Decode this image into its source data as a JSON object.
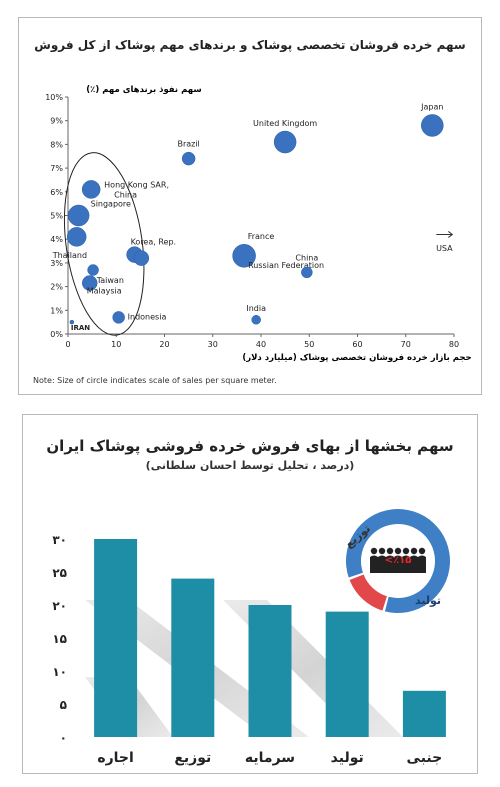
{
  "chart_data": [
    {
      "type": "scatter",
      "title": "سهم خرده فروشان تخصصی پوشاک و برندهای مهم پوشاک از کل فروش",
      "ylabel": "سهم نفوذ برندهای مهم (٪)",
      "xlabel": "حجم بازار خرده فروشان تخصصی پوشاک (میلیارد دلار)",
      "note": "Note: Size of circle indicates scale of sales per square meter.",
      "xlim": [
        0,
        80
      ],
      "ylim": [
        0,
        10
      ],
      "x_ticks": [
        "0",
        "10",
        "20",
        "30",
        "40",
        "50",
        "60",
        "70",
        "80"
      ],
      "y_ticks": [
        "0%",
        "1%",
        "2%",
        "3%",
        "4%",
        "5%",
        "6%",
        "7%",
        "8%",
        "9%",
        "10%"
      ],
      "grid": false,
      "points": [
        {
          "label": "Japan",
          "x": 75.5,
          "y": 8.8,
          "size": 11
        },
        {
          "label": "United Kingdom",
          "x": 45,
          "y": 8.1,
          "size": 11
        },
        {
          "label": "Brazil",
          "x": 25,
          "y": 7.4,
          "size": 6.5
        },
        {
          "label": "Hong Kong SAR, China",
          "x": 4.8,
          "y": 6.1,
          "size": 9
        },
        {
          "label": "Singapore",
          "x": 2.2,
          "y": 5.0,
          "size": 10.5
        },
        {
          "label": "",
          "x": 1.8,
          "y": 4.1,
          "size": 9.5
        },
        {
          "label": "Korea, Rep.",
          "x": 13.8,
          "y": 3.35,
          "size": 8
        },
        {
          "label": "",
          "x": 15.2,
          "y": 3.2,
          "size": 7.5
        },
        {
          "label": "Russian Federation",
          "x": 36.5,
          "y": 3.3,
          "size": 11.5
        },
        {
          "label": "China",
          "x": 49.5,
          "y": 2.6,
          "size": 5.5
        },
        {
          "label": "Thailand",
          "x": 5.2,
          "y": 2.7,
          "size": 5.5
        },
        {
          "label": "Taiwan",
          "x": 4.5,
          "y": 2.15,
          "size": 7.5
        },
        {
          "label": "Indonesia",
          "x": 10.5,
          "y": 0.7,
          "size": 6
        },
        {
          "label": "India",
          "x": 39,
          "y": 0.6,
          "size": 4.5
        },
        {
          "label": "IRAN",
          "x": 0.8,
          "y": 0.5,
          "size": 2
        }
      ],
      "extra_labels": [
        {
          "text": "France",
          "x": 40,
          "y": 4.0
        },
        {
          "text": "USA",
          "x": 78,
          "y": 3.5
        },
        {
          "text": "Malaysia",
          "x": 7.5,
          "y": 1.7
        }
      ],
      "highlight": "ellipse around the small-market countries on the left"
    },
    {
      "type": "bar",
      "title": "سهم بخشها از بهای فروش خرده فروشی پوشاک ایران",
      "subtitle": "(درصد ، تحلیل توسط احسان سلطانی)",
      "categories": [
        "اجاره",
        "توزیع",
        "سرمایه",
        "تولید",
        "جنبی"
      ],
      "values": [
        30,
        24,
        20,
        19,
        7
      ],
      "ylim": [
        0,
        30
      ],
      "y_ticks": [
        "۰",
        "۵",
        "۱۰",
        "۱۵",
        "۲۰",
        "۲۵",
        "۳۰"
      ],
      "bar_color": "#1d8ea6",
      "inset": {
        "type": "donut",
        "slices": [
          {
            "label": "تولید",
            "value": 85,
            "color": "#3f7fc6"
          },
          {
            "label": "توزیع",
            "value": 15,
            "color": "#e2474a"
          }
        ],
        "center_label": "٪۱۵>"
      }
    }
  ]
}
